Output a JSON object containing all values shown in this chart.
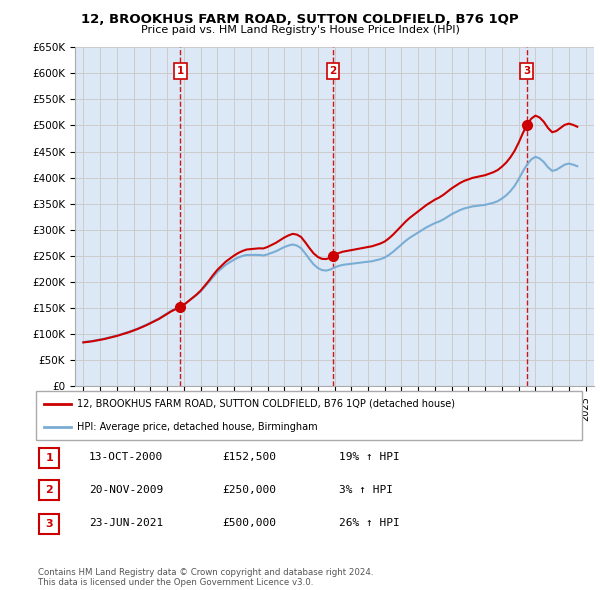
{
  "title": "12, BROOKHUS FARM ROAD, SUTTON COLDFIELD, B76 1QP",
  "subtitle": "Price paid vs. HM Land Registry's House Price Index (HPI)",
  "ylabel_ticks": [
    "£0",
    "£50K",
    "£100K",
    "£150K",
    "£200K",
    "£250K",
    "£300K",
    "£350K",
    "£400K",
    "£450K",
    "£500K",
    "£550K",
    "£600K",
    "£650K"
  ],
  "ytick_values": [
    0,
    50000,
    100000,
    150000,
    200000,
    250000,
    300000,
    350000,
    400000,
    450000,
    500000,
    550000,
    600000,
    650000
  ],
  "xlim": [
    1994.5,
    2025.5
  ],
  "ylim": [
    0,
    650000
  ],
  "background_color": "#ffffff",
  "grid_color": "#cccccc",
  "plot_bg_color": "#dce8f5",
  "sale_color": "#cc0000",
  "hpi_color": "#7aadd4",
  "sale_points": [
    {
      "year": 2000.79,
      "price": 152500,
      "label": "1"
    },
    {
      "year": 2009.9,
      "price": 250000,
      "label": "2"
    },
    {
      "year": 2021.48,
      "price": 500000,
      "label": "3"
    }
  ],
  "hpi_x": [
    1995.0,
    1995.25,
    1995.5,
    1995.75,
    1996.0,
    1996.25,
    1996.5,
    1996.75,
    1997.0,
    1997.25,
    1997.5,
    1997.75,
    1998.0,
    1998.25,
    1998.5,
    1998.75,
    1999.0,
    1999.25,
    1999.5,
    1999.75,
    2000.0,
    2000.25,
    2000.5,
    2000.75,
    2001.0,
    2001.25,
    2001.5,
    2001.75,
    2002.0,
    2002.25,
    2002.5,
    2002.75,
    2003.0,
    2003.25,
    2003.5,
    2003.75,
    2004.0,
    2004.25,
    2004.5,
    2004.75,
    2005.0,
    2005.25,
    2005.5,
    2005.75,
    2006.0,
    2006.25,
    2006.5,
    2006.75,
    2007.0,
    2007.25,
    2007.5,
    2007.75,
    2008.0,
    2008.25,
    2008.5,
    2008.75,
    2009.0,
    2009.25,
    2009.5,
    2009.75,
    2010.0,
    2010.25,
    2010.5,
    2010.75,
    2011.0,
    2011.25,
    2011.5,
    2011.75,
    2012.0,
    2012.25,
    2012.5,
    2012.75,
    2013.0,
    2013.25,
    2013.5,
    2013.75,
    2014.0,
    2014.25,
    2014.5,
    2014.75,
    2015.0,
    2015.25,
    2015.5,
    2015.75,
    2016.0,
    2016.25,
    2016.5,
    2016.75,
    2017.0,
    2017.25,
    2017.5,
    2017.75,
    2018.0,
    2018.25,
    2018.5,
    2018.75,
    2019.0,
    2019.25,
    2019.5,
    2019.75,
    2020.0,
    2020.25,
    2020.5,
    2020.75,
    2021.0,
    2021.25,
    2021.5,
    2021.75,
    2022.0,
    2022.25,
    2022.5,
    2022.75,
    2023.0,
    2023.25,
    2023.5,
    2023.75,
    2024.0,
    2024.25,
    2024.5
  ],
  "hpi_y": [
    85000,
    86000,
    87000,
    88500,
    90000,
    91500,
    93500,
    95500,
    97500,
    100000,
    102500,
    105000,
    108000,
    111000,
    114500,
    118000,
    122000,
    126000,
    130000,
    135000,
    140000,
    145000,
    149000,
    153000,
    157000,
    163000,
    169000,
    175000,
    182000,
    191000,
    200000,
    210000,
    219000,
    226000,
    233000,
    238000,
    243000,
    247000,
    250000,
    252000,
    252000,
    252000,
    252000,
    251000,
    253000,
    256000,
    259000,
    263000,
    267000,
    270000,
    272000,
    270000,
    265000,
    255000,
    244000,
    234000,
    227000,
    223000,
    222000,
    224000,
    228000,
    231000,
    233000,
    234000,
    235000,
    236000,
    237000,
    238000,
    239000,
    240000,
    242000,
    244000,
    247000,
    252000,
    258000,
    265000,
    272000,
    279000,
    285000,
    290000,
    295000,
    300000,
    305000,
    309000,
    313000,
    316000,
    320000,
    325000,
    330000,
    334000,
    338000,
    341000,
    343000,
    345000,
    346000,
    347000,
    348000,
    350000,
    352000,
    355000,
    360000,
    366000,
    374000,
    384000,
    397000,
    412000,
    425000,
    435000,
    440000,
    437000,
    430000,
    420000,
    413000,
    415000,
    420000,
    425000,
    427000,
    425000,
    422000
  ],
  "sale_color_marker": "#cc0000",
  "vline_color": "#cc0000",
  "legend_sale_label": "12, BROOKHUS FARM ROAD, SUTTON COLDFIELD, B76 1QP (detached house)",
  "legend_hpi_label": "HPI: Average price, detached house, Birmingham",
  "table_rows": [
    {
      "num": "1",
      "date": "13-OCT-2000",
      "price": "£152,500",
      "hpi": "19% ↑ HPI"
    },
    {
      "num": "2",
      "date": "20-NOV-2009",
      "price": "£250,000",
      "hpi": "3% ↑ HPI"
    },
    {
      "num": "3",
      "date": "23-JUN-2021",
      "price": "£500,000",
      "hpi": "26% ↑ HPI"
    }
  ],
  "footnote": "Contains HM Land Registry data © Crown copyright and database right 2024.\nThis data is licensed under the Open Government Licence v3.0.",
  "xtick_years": [
    1995,
    1996,
    1997,
    1998,
    1999,
    2000,
    2001,
    2002,
    2003,
    2004,
    2005,
    2006,
    2007,
    2008,
    2009,
    2010,
    2011,
    2012,
    2013,
    2014,
    2015,
    2016,
    2017,
    2018,
    2019,
    2020,
    2021,
    2022,
    2023,
    2024,
    2025
  ]
}
